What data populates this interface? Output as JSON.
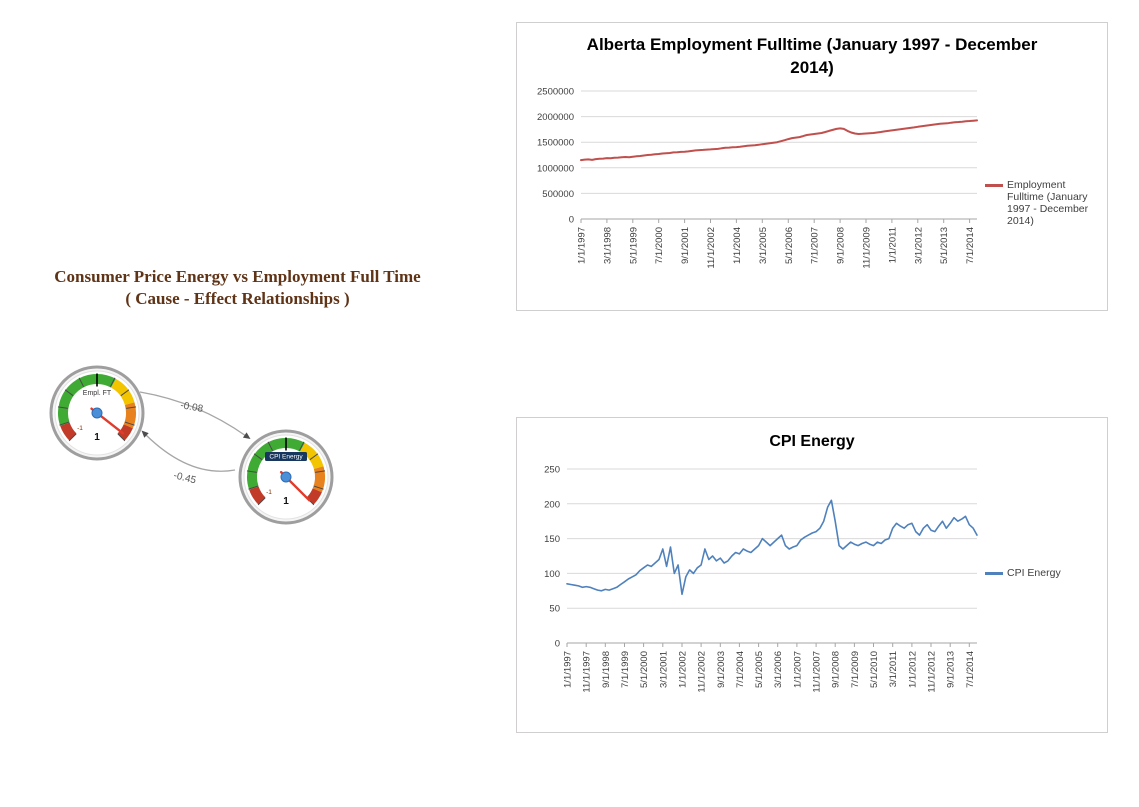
{
  "heading": {
    "line1": "Consumer Price Energy vs Employment Full Time",
    "line2": "( Cause - Effect Relationships )",
    "color": "#5f3316"
  },
  "gauges": {
    "empl": {
      "label": "Empl. FT",
      "min_label": "-1",
      "value": "1"
    },
    "cpi": {
      "label": "CPI Energy",
      "min_label": "-1",
      "value": "1"
    }
  },
  "relationships": {
    "empl_to_cpi": "-0.08",
    "cpi_to_empl": "-0.45"
  },
  "gauge_style": {
    "band_colors": [
      "#c23a28",
      "#3faa34",
      "#f2c500",
      "#e8821e",
      "#c23a28"
    ],
    "needle_color": "#e03c2d",
    "hub_color": "#4a90d9",
    "label_pill_color": "#17375e"
  },
  "chart_data": [
    {
      "type": "line",
      "title": "Alberta Employment Fulltime (January 1997 - December 2014)",
      "x_start": "1/1/1997",
      "x_interval_months": 2,
      "x_tick_every": 7,
      "x_tick_labels": [
        "1/1/1997",
        "3/1/1998",
        "5/1/1999",
        "7/1/2000",
        "9/1/2001",
        "11/1/2002",
        "1/1/2004",
        "3/1/2005",
        "5/1/2006",
        "7/1/2007",
        "9/1/2008",
        "11/1/2009",
        "1/1/2011",
        "3/1/2012",
        "5/1/2013",
        "7/1/2014"
      ],
      "ylim": [
        0,
        2500000
      ],
      "y_ticks": [
        0,
        500000,
        1000000,
        1500000,
        2000000,
        2500000
      ],
      "grid": true,
      "legend_position": "right",
      "series": [
        {
          "name": "Employment Fulltime (January 1997 - December 2014)",
          "color": "#c0504d",
          "stroke_width": 2,
          "values": [
            1150000,
            1160000,
            1165000,
            1155000,
            1170000,
            1175000,
            1180000,
            1190000,
            1185000,
            1195000,
            1200000,
            1205000,
            1210000,
            1205000,
            1215000,
            1225000,
            1230000,
            1240000,
            1250000,
            1255000,
            1265000,
            1270000,
            1280000,
            1285000,
            1290000,
            1300000,
            1305000,
            1310000,
            1315000,
            1320000,
            1330000,
            1340000,
            1345000,
            1350000,
            1355000,
            1360000,
            1365000,
            1370000,
            1380000,
            1390000,
            1395000,
            1400000,
            1405000,
            1410000,
            1420000,
            1430000,
            1435000,
            1440000,
            1450000,
            1460000,
            1470000,
            1480000,
            1490000,
            1500000,
            1520000,
            1540000,
            1560000,
            1580000,
            1590000,
            1600000,
            1620000,
            1640000,
            1650000,
            1660000,
            1670000,
            1680000,
            1700000,
            1720000,
            1740000,
            1760000,
            1770000,
            1760000,
            1720000,
            1690000,
            1670000,
            1660000,
            1665000,
            1670000,
            1675000,
            1680000,
            1690000,
            1700000,
            1710000,
            1720000,
            1730000,
            1740000,
            1750000,
            1760000,
            1770000,
            1780000,
            1790000,
            1800000,
            1810000,
            1820000,
            1830000,
            1840000,
            1850000,
            1860000,
            1865000,
            1870000,
            1880000,
            1890000,
            1895000,
            1900000,
            1910000,
            1915000,
            1920000,
            1925000
          ]
        }
      ]
    },
    {
      "type": "line",
      "title": "CPI Energy",
      "x_start": "1/1/1997",
      "x_interval_months": 2,
      "x_tick_every": 5,
      "x_tick_labels": [
        "1/1/1997",
        "11/1/1997",
        "9/1/1998",
        "7/1/1999",
        "5/1/2000",
        "3/1/2001",
        "1/1/2002",
        "11/1/2002",
        "9/1/2003",
        "7/1/2004",
        "5/1/2005",
        "3/1/2006",
        "1/1/2007",
        "11/1/2007",
        "9/1/2008",
        "7/1/2009",
        "5/1/2010",
        "3/1/2011",
        "1/1/2012",
        "11/1/2012",
        "9/1/2013",
        "7/1/2014"
      ],
      "ylim": [
        0,
        250
      ],
      "y_ticks": [
        0,
        50,
        100,
        150,
        200,
        250
      ],
      "grid": true,
      "legend_position": "right",
      "series": [
        {
          "name": "CPI Energy",
          "color": "#4f81bd",
          "stroke_width": 1.6,
          "values": [
            85,
            84,
            83,
            82,
            80,
            81,
            80,
            78,
            76,
            75,
            77,
            76,
            78,
            80,
            84,
            88,
            92,
            95,
            98,
            104,
            108,
            112,
            110,
            115,
            120,
            135,
            110,
            138,
            100,
            112,
            70,
            95,
            105,
            100,
            108,
            112,
            135,
            120,
            125,
            118,
            122,
            115,
            118,
            125,
            130,
            128,
            135,
            132,
            130,
            135,
            140,
            150,
            145,
            140,
            145,
            150,
            155,
            140,
            135,
            138,
            140,
            148,
            152,
            155,
            158,
            160,
            165,
            175,
            195,
            205,
            175,
            140,
            135,
            140,
            145,
            142,
            140,
            143,
            145,
            142,
            140,
            145,
            143,
            148,
            150,
            165,
            172,
            168,
            165,
            170,
            172,
            160,
            155,
            165,
            170,
            162,
            160,
            168,
            175,
            165,
            172,
            180,
            175,
            178,
            182,
            170,
            165,
            155
          ]
        }
      ]
    }
  ]
}
